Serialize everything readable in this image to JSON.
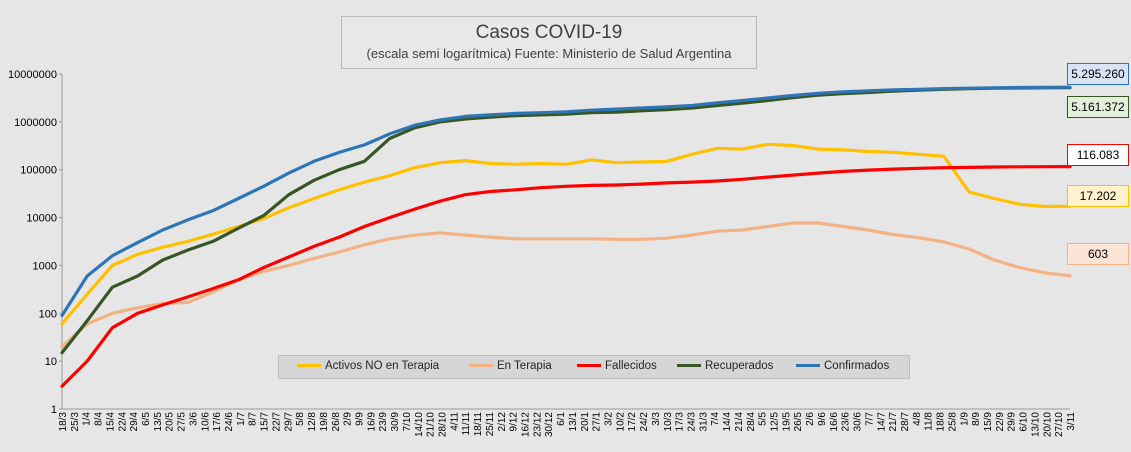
{
  "chart_data": {
    "type": "line",
    "title": "Casos COVID-19",
    "subtitle": "(escala semi logarítmica) Fuente: Ministerio de Salud Argentina",
    "yscale": "log",
    "ylim": [
      1,
      10000000
    ],
    "y_ticks": [
      "1",
      "10",
      "100",
      "1000",
      "10000",
      "100000",
      "1000000",
      "10000000"
    ],
    "x_ticks": [
      "18/3",
      "25/3",
      "1/4",
      "8/4",
      "15/4",
      "22/4",
      "29/4",
      "6/5",
      "13/5",
      "20/5",
      "27/5",
      "3/6",
      "10/6",
      "17/6",
      "24/6",
      "1/7",
      "8/7",
      "15/7",
      "22/7",
      "29/7",
      "5/8",
      "12/8",
      "19/8",
      "26/8",
      "2/9",
      "9/9",
      "16/9",
      "23/9",
      "30/9",
      "7/10",
      "14/10",
      "21/10",
      "28/10",
      "4/11",
      "11/11",
      "18/11",
      "25/11",
      "2/12",
      "9/12",
      "16/12",
      "23/12",
      "30/12",
      "6/1",
      "13/1",
      "20/1",
      "27/1",
      "3/2",
      "10/2",
      "17/2",
      "24/2",
      "3/3",
      "10/3",
      "17/3",
      "24/3",
      "31/3",
      "7/4",
      "14/4",
      "21/4",
      "28/4",
      "5/5",
      "12/5",
      "19/5",
      "26/5",
      "2/6",
      "9/6",
      "16/6",
      "23/6",
      "30/6",
      "7/7",
      "14/7",
      "21/7",
      "28/7",
      "4/8",
      "11/8",
      "18/8",
      "25/8",
      "1/9",
      "8/9",
      "15/9",
      "22/9",
      "29/9",
      "6/10",
      "13/10",
      "20/10",
      "27/10",
      "3/11"
    ],
    "grid": false,
    "legend_position": "bottom-center",
    "series": [
      {
        "name": "Activos NO en Terapia",
        "color": "#ffc000",
        "values": [
          60,
          250,
          1000,
          1700,
          2400,
          3200,
          4500,
          6500,
          9500,
          16000,
          25000,
          38000,
          55000,
          75000,
          110000,
          140000,
          155000,
          135000,
          130000,
          135000,
          130000,
          160000,
          140000,
          145000,
          150000,
          210000,
          280000,
          270000,
          340000,
          320000,
          270000,
          260000,
          240000,
          230000,
          210000,
          190000,
          34000,
          25000,
          19000,
          17000,
          17202
        ]
      },
      {
        "name": "En Terapia",
        "color": "#f4b183",
        "values": [
          20,
          60,
          100,
          130,
          160,
          170,
          280,
          500,
          750,
          1000,
          1400,
          1900,
          2700,
          3600,
          4300,
          4800,
          4300,
          3900,
          3600,
          3600,
          3600,
          3600,
          3500,
          3500,
          3700,
          4300,
          5200,
          5500,
          6500,
          7700,
          7700,
          6500,
          5500,
          4400,
          3800,
          3100,
          2200,
          1300,
          900,
          700,
          603
        ]
      },
      {
        "name": "Fallecidos",
        "color": "#ff0000",
        "values": [
          3,
          10,
          50,
          100,
          150,
          220,
          330,
          500,
          900,
          1500,
          2500,
          3900,
          6500,
          10000,
          15000,
          22000,
          30000,
          35000,
          38000,
          42000,
          45000,
          47000,
          48000,
          50000,
          53000,
          55000,
          58000,
          63000,
          70000,
          77000,
          85000,
          92000,
          98000,
          103000,
          107000,
          110000,
          112000,
          114000,
          115000,
          115500,
          116083
        ]
      },
      {
        "name": "Recuperados",
        "color": "#375623",
        "values": [
          15,
          70,
          350,
          600,
          1300,
          2100,
          3200,
          6000,
          11000,
          30000,
          60000,
          100000,
          150000,
          450000,
          750000,
          1000000,
          1150000,
          1250000,
          1350000,
          1400000,
          1450000,
          1550000,
          1600000,
          1700000,
          1800000,
          1950000,
          2200000,
          2450000,
          2800000,
          3200000,
          3600000,
          3900000,
          4100000,
          4400000,
          4600000,
          4800000,
          4950000,
          5050000,
          5100000,
          5140000,
          5161372
        ]
      },
      {
        "name": "Confirmados",
        "color": "#2e75b6",
        "values": [
          90,
          600,
          1600,
          3000,
          5500,
          9000,
          14000,
          25000,
          45000,
          85000,
          150000,
          230000,
          330000,
          560000,
          850000,
          1100000,
          1300000,
          1400000,
          1500000,
          1550000,
          1620000,
          1750000,
          1850000,
          1950000,
          2050000,
          2200000,
          2500000,
          2800000,
          3150000,
          3550000,
          3950000,
          4250000,
          4450000,
          4650000,
          4800000,
          4950000,
          5050000,
          5150000,
          5220000,
          5260000,
          5295260
        ]
      }
    ],
    "end_labels": [
      {
        "series": "Confirmados",
        "text": "5.295.260",
        "bg": "#dae3f3",
        "border": "#2e75b6"
      },
      {
        "series": "Recuperados",
        "text": "5.161.372",
        "bg": "#e2efda",
        "border": "#375623"
      },
      {
        "series": "Fallecidos",
        "text": "116.083",
        "bg": "#ffffff",
        "border": "#ff0000"
      },
      {
        "series": "Activos NO en Terapia",
        "text": "17.202",
        "bg": "#fff2cc",
        "border": "#ffc000"
      },
      {
        "series": "En Terapia",
        "text": "603",
        "bg": "#fce4d6",
        "border": "#f4b183"
      }
    ]
  }
}
